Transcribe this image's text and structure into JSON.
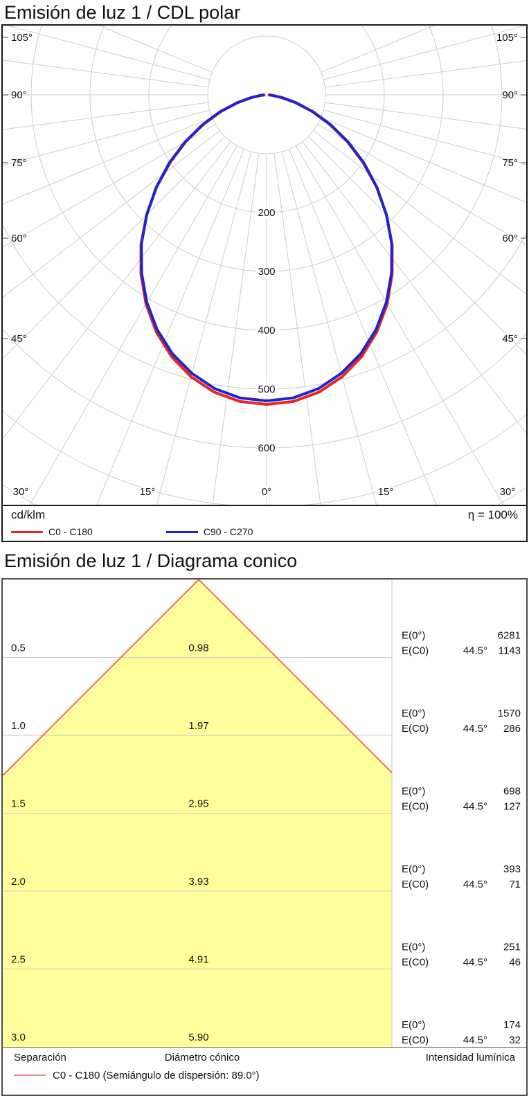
{
  "chart_data": [
    {
      "type": "line",
      "subtype": "polar-intensity-distribution",
      "title": "Emisión de luz 1 / CDL polar",
      "unit": "cd/klm",
      "efficiency": "η = 100%",
      "angles_deg": [
        0,
        5,
        10,
        15,
        20,
        25,
        30,
        35,
        40,
        45,
        50,
        55,
        60,
        65,
        70,
        75,
        80,
        85,
        90
      ],
      "series": [
        {
          "name": "C0 - C180",
          "color": "#e8251f",
          "values": [
            526,
            523,
            513,
            496,
            473,
            444,
            410,
            372,
            332,
            288,
            244,
            200,
            158,
            118,
            82,
            50,
            25,
            8,
            2
          ]
        },
        {
          "name": "C90 - C270",
          "color": "#2323cd",
          "values": [
            520,
            517,
            507,
            490,
            468,
            440,
            407,
            370,
            331,
            288,
            245,
            202,
            160,
            120,
            84,
            52,
            27,
            10,
            4
          ]
        }
      ],
      "radial_ticks": [
        "200",
        "300",
        "400",
        "500",
        "600"
      ],
      "radial_range": [
        0,
        600
      ],
      "angular_tick_labels_sides": [
        "105°",
        "90°",
        "75°",
        "60°",
        "45°"
      ],
      "angular_tick_labels_bottom": [
        "30°",
        "15°",
        "0°",
        "15°",
        "30°"
      ],
      "grid": true,
      "intensity_at_0deg_cd_klm": 520
    },
    {
      "type": "table",
      "subtype": "cone-diagram",
      "title": "Emisión de luz 1 / Diagrama conico",
      "columns": [
        "Separación",
        "Diámetro cónico",
        "Intensidad lumínica"
      ],
      "rows": [
        {
          "separation": "0.5",
          "diameter": "0.98",
          "e0_label": "E(0°)",
          "e0": "6281",
          "ec0_label": "E(C0)",
          "angle": "44.5°",
          "ec0": "1143"
        },
        {
          "separation": "1.0",
          "diameter": "1.97",
          "e0_label": "E(0°)",
          "e0": "1570",
          "ec0_label": "E(C0)",
          "angle": "44.5°",
          "ec0": "286"
        },
        {
          "separation": "1.5",
          "diameter": "2.95",
          "e0_label": "E(0°)",
          "e0": "698",
          "ec0_label": "E(C0)",
          "angle": "44.5°",
          "ec0": "127"
        },
        {
          "separation": "2.0",
          "diameter": "3.93",
          "e0_label": "E(0°)",
          "e0": "393",
          "ec0_label": "E(C0)",
          "angle": "44.5°",
          "ec0": "71"
        },
        {
          "separation": "2.5",
          "diameter": "4.91",
          "e0_label": "E(0°)",
          "e0": "251",
          "ec0_label": "E(C0)",
          "angle": "44.5°",
          "ec0": "46"
        },
        {
          "separation": "3.0",
          "diameter": "5.90",
          "e0_label": "E(0°)",
          "e0": "174",
          "ec0_label": "E(C0)",
          "angle": "44.5°",
          "ec0": "32"
        }
      ],
      "legend": {
        "label": "C0 - C180 (Semiángulo de dispersión: 89.0°)",
        "color": "#ec8383"
      },
      "cone_fill": "#ffff9c",
      "cone_edge": "#f2553d",
      "beam_half_angle_deg": 44.5
    }
  ]
}
